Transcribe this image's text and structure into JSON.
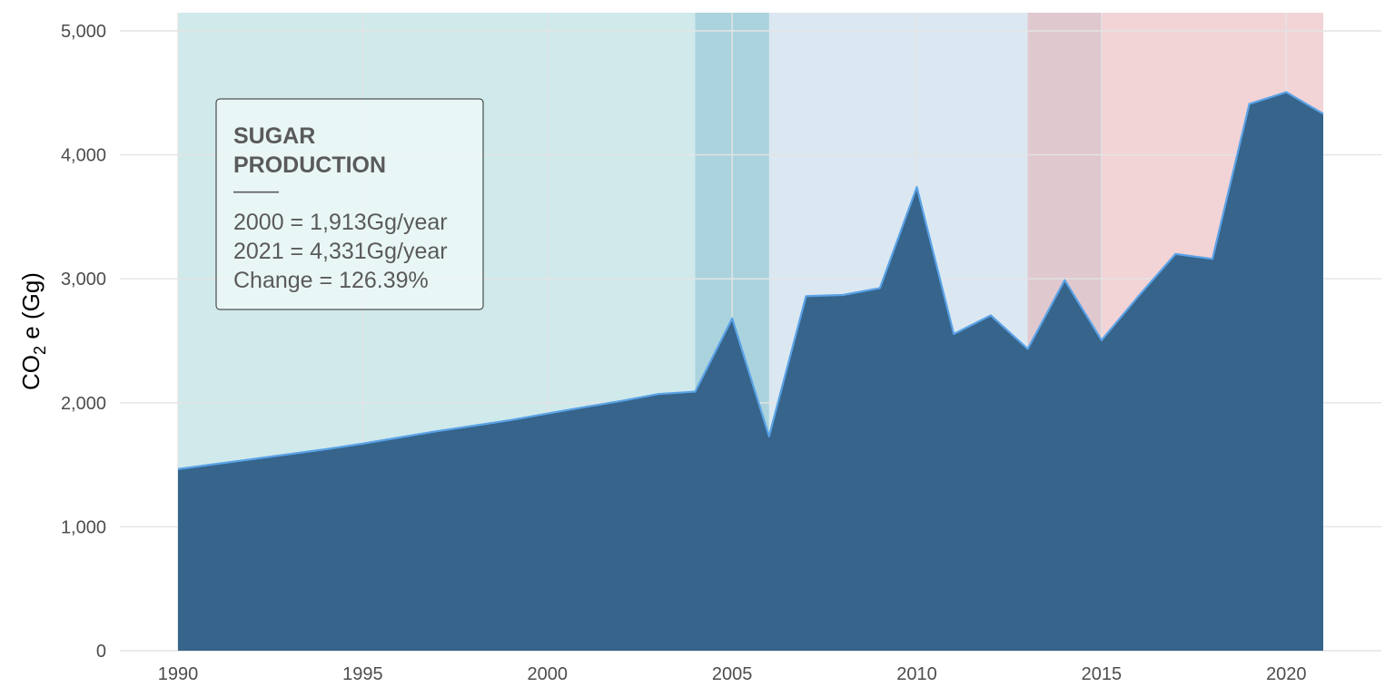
{
  "chart_data": {
    "type": "area",
    "title": "",
    "xlabel": "",
    "ylabel": "CO",
    "ylabel_subscript": "2",
    "ylabel_suffix": " e (Gg)",
    "xlim": [
      1990,
      2021
    ],
    "ylim": [
      0,
      5000
    ],
    "x_ticks": [
      1990,
      1995,
      2000,
      2005,
      2010,
      2015,
      2020
    ],
    "x_tick_labels": [
      "1990",
      "1995",
      "2000",
      "2005",
      "2010",
      "2015",
      "2020"
    ],
    "y_ticks": [
      0,
      1000,
      2000,
      3000,
      4000,
      5000
    ],
    "y_tick_labels": [
      "0",
      "1,000",
      "2,000",
      "3,000",
      "4,000",
      "5,000"
    ],
    "grid": true,
    "legend": "none",
    "series": [
      {
        "x": [
          1990,
          1991,
          1992,
          1993,
          1994,
          1995,
          1996,
          1997,
          1998,
          1999,
          2000,
          2001,
          2002,
          2003,
          2004,
          2005,
          2006,
          2007,
          2008,
          2009,
          2010,
          2011,
          2012,
          2013,
          2014,
          2015,
          2016,
          2017,
          2018,
          2019,
          2020,
          2021
        ],
        "values": [
          1465,
          1505,
          1545,
          1585,
          1625,
          1670,
          1720,
          1770,
          1815,
          1860,
          1913,
          1965,
          2015,
          2070,
          2090,
          2680,
          1730,
          2860,
          2870,
          2925,
          3740,
          2555,
          2705,
          2435,
          2990,
          2505,
          2860,
          3200,
          3160,
          4410,
          4505,
          4331
        ],
        "fill_color": "#36648b",
        "line_color": "#5aa2e6"
      }
    ],
    "bands": [
      {
        "from": 1990,
        "to": 2006,
        "color": "#8fcbcf",
        "opacity": 0.42
      },
      {
        "from": 2004,
        "to": 2006,
        "color": "#6bb1c9",
        "opacity": 0.38
      },
      {
        "from": 2006,
        "to": 2015,
        "color": "#a9c7dd",
        "opacity": 0.42
      },
      {
        "from": 2013,
        "to": 2021,
        "color": "#e6a7ad",
        "opacity": 0.5
      }
    ],
    "annotation": {
      "title_lines": [
        "SUGAR",
        "PRODUCTION"
      ],
      "separator": "——",
      "lines": [
        "2000 = 1,913Gg/year",
        "2021 = 4,331Gg/year",
        "Change = 126.39%"
      ],
      "position": "top-left"
    },
    "colors": {
      "grid": "#e4e4e4",
      "tick_text": "#4d4d4d",
      "annotation_text": "#5a5a5a",
      "annotation_border": "#2b2b2b",
      "annotation_fill": "#f3fbfb"
    }
  }
}
